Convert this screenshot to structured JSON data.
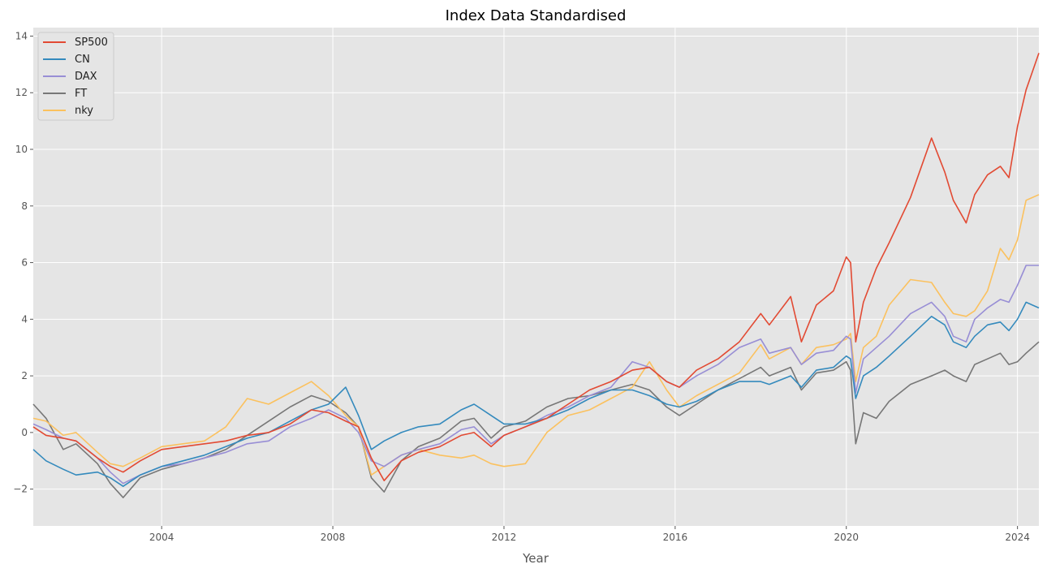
{
  "chart_data": {
    "type": "line",
    "title": "Index Data Standardised",
    "xlabel": "Year",
    "ylabel": "",
    "xlim": [
      2001.0,
      2024.5
    ],
    "ylim": [
      -3.3,
      14.3
    ],
    "x_ticks": [
      2004,
      2008,
      2012,
      2016,
      2020,
      2024
    ],
    "x_tick_labels": [
      "2004",
      "2008",
      "2012",
      "2016",
      "2020",
      "2024"
    ],
    "y_ticks": [
      -2,
      0,
      2,
      4,
      6,
      8,
      10,
      12,
      14
    ],
    "y_tick_labels": [
      "−2",
      "0",
      "2",
      "4",
      "6",
      "8",
      "10",
      "12",
      "14"
    ],
    "grid": true,
    "legend_position": "top-left",
    "series": [
      {
        "name": "SP500",
        "color": "#E24A33",
        "x": [
          2001.0,
          2001.3,
          2001.7,
          2002.0,
          2002.5,
          2002.8,
          2003.1,
          2003.5,
          2004.0,
          2004.5,
          2005.0,
          2005.5,
          2006.0,
          2006.5,
          2007.0,
          2007.5,
          2007.9,
          2008.3,
          2008.6,
          2008.9,
          2009.2,
          2009.6,
          2010.0,
          2010.5,
          2011.0,
          2011.3,
          2011.7,
          2012.0,
          2012.5,
          2013.0,
          2013.5,
          2014.0,
          2014.5,
          2015.0,
          2015.4,
          2015.8,
          2016.1,
          2016.5,
          2017.0,
          2017.5,
          2018.0,
          2018.2,
          2018.7,
          2018.95,
          2019.3,
          2019.7,
          2020.0,
          2020.1,
          2020.22,
          2020.4,
          2020.7,
          2021.0,
          2021.5,
          2021.99,
          2022.3,
          2022.5,
          2022.8,
          2023.0,
          2023.3,
          2023.6,
          2023.8,
          2024.0,
          2024.2,
          2024.5
        ],
        "y": [
          0.2,
          -0.1,
          -0.2,
          -0.3,
          -0.9,
          -1.2,
          -1.4,
          -1.0,
          -0.6,
          -0.5,
          -0.4,
          -0.3,
          -0.1,
          0.0,
          0.3,
          0.8,
          0.7,
          0.4,
          0.2,
          -0.9,
          -1.7,
          -1.0,
          -0.7,
          -0.5,
          -0.1,
          0.0,
          -0.5,
          -0.1,
          0.2,
          0.5,
          1.0,
          1.5,
          1.8,
          2.2,
          2.3,
          1.8,
          1.6,
          2.2,
          2.6,
          3.2,
          4.2,
          3.8,
          4.8,
          3.2,
          4.5,
          5.0,
          6.2,
          6.0,
          3.2,
          4.6,
          5.8,
          6.7,
          8.3,
          10.4,
          9.2,
          8.2,
          7.4,
          8.4,
          9.1,
          9.4,
          9.0,
          10.8,
          12.1,
          13.4
        ]
      },
      {
        "name": "CN",
        "color": "#348ABD",
        "x": [
          2001.0,
          2001.3,
          2001.7,
          2002.0,
          2002.5,
          2002.8,
          2003.1,
          2003.5,
          2004.0,
          2004.5,
          2005.0,
          2005.5,
          2006.0,
          2006.5,
          2007.0,
          2007.5,
          2007.9,
          2008.3,
          2008.6,
          2008.9,
          2009.2,
          2009.6,
          2010.0,
          2010.5,
          2011.0,
          2011.3,
          2011.7,
          2012.0,
          2012.5,
          2013.0,
          2013.5,
          2014.0,
          2014.5,
          2015.0,
          2015.4,
          2015.8,
          2016.1,
          2016.5,
          2017.0,
          2017.5,
          2018.0,
          2018.2,
          2018.7,
          2018.95,
          2019.3,
          2019.7,
          2020.0,
          2020.1,
          2020.22,
          2020.4,
          2020.7,
          2021.0,
          2021.5,
          2021.99,
          2022.3,
          2022.5,
          2022.8,
          2023.0,
          2023.3,
          2023.6,
          2023.8,
          2024.0,
          2024.2,
          2024.5
        ],
        "y": [
          -0.6,
          -1.0,
          -1.3,
          -1.5,
          -1.4,
          -1.6,
          -1.9,
          -1.5,
          -1.2,
          -1.0,
          -0.8,
          -0.5,
          -0.2,
          0.0,
          0.4,
          0.8,
          1.0,
          1.6,
          0.6,
          -0.6,
          -0.3,
          0.0,
          0.2,
          0.3,
          0.8,
          1.0,
          0.6,
          0.3,
          0.3,
          0.5,
          0.8,
          1.2,
          1.5,
          1.5,
          1.3,
          1.0,
          0.9,
          1.1,
          1.5,
          1.8,
          1.8,
          1.7,
          2.0,
          1.6,
          2.2,
          2.3,
          2.7,
          2.6,
          1.2,
          2.0,
          2.3,
          2.7,
          3.4,
          4.1,
          3.8,
          3.2,
          3.0,
          3.4,
          3.8,
          3.9,
          3.6,
          4.0,
          4.6,
          4.4
        ]
      },
      {
        "name": "DAX",
        "color": "#988ED5",
        "x": [
          2001.0,
          2001.3,
          2001.7,
          2002.0,
          2002.5,
          2002.8,
          2003.1,
          2003.5,
          2004.0,
          2004.5,
          2005.0,
          2005.5,
          2006.0,
          2006.5,
          2007.0,
          2007.5,
          2007.9,
          2008.3,
          2008.6,
          2008.9,
          2009.2,
          2009.6,
          2010.0,
          2010.5,
          2011.0,
          2011.3,
          2011.7,
          2012.0,
          2012.5,
          2013.0,
          2013.5,
          2014.0,
          2014.5,
          2015.0,
          2015.4,
          2015.8,
          2016.1,
          2016.5,
          2017.0,
          2017.5,
          2018.0,
          2018.2,
          2018.7,
          2018.95,
          2019.3,
          2019.7,
          2020.0,
          2020.1,
          2020.22,
          2020.4,
          2020.7,
          2021.0,
          2021.5,
          2021.99,
          2022.3,
          2022.5,
          2022.8,
          2023.0,
          2023.3,
          2023.6,
          2023.8,
          2024.0,
          2024.2,
          2024.5
        ],
        "y": [
          0.3,
          0.1,
          -0.2,
          -0.3,
          -0.9,
          -1.4,
          -1.8,
          -1.5,
          -1.2,
          -1.1,
          -0.9,
          -0.7,
          -0.4,
          -0.3,
          0.2,
          0.5,
          0.8,
          0.5,
          0.0,
          -1.0,
          -1.2,
          -0.8,
          -0.6,
          -0.4,
          0.1,
          0.2,
          -0.4,
          -0.1,
          0.2,
          0.6,
          0.9,
          1.3,
          1.6,
          2.5,
          2.3,
          1.8,
          1.6,
          2.0,
          2.4,
          3.0,
          3.3,
          2.8,
          3.0,
          2.4,
          2.8,
          2.9,
          3.4,
          3.3,
          1.4,
          2.6,
          3.0,
          3.4,
          4.2,
          4.6,
          4.1,
          3.4,
          3.2,
          4.0,
          4.4,
          4.7,
          4.6,
          5.2,
          5.9,
          5.9
        ]
      },
      {
        "name": "FT",
        "color": "#777777",
        "x": [
          2001.0,
          2001.3,
          2001.7,
          2002.0,
          2002.5,
          2002.8,
          2003.1,
          2003.5,
          2004.0,
          2004.5,
          2005.0,
          2005.5,
          2006.0,
          2006.5,
          2007.0,
          2007.5,
          2007.9,
          2008.3,
          2008.6,
          2008.9,
          2009.2,
          2009.6,
          2010.0,
          2010.5,
          2011.0,
          2011.3,
          2011.7,
          2012.0,
          2012.5,
          2013.0,
          2013.5,
          2014.0,
          2014.5,
          2015.0,
          2015.4,
          2015.8,
          2016.1,
          2016.5,
          2017.0,
          2017.5,
          2018.0,
          2018.2,
          2018.7,
          2018.95,
          2019.3,
          2019.7,
          2020.0,
          2020.1,
          2020.22,
          2020.4,
          2020.7,
          2021.0,
          2021.5,
          2021.99,
          2022.3,
          2022.5,
          2022.8,
          2023.0,
          2023.3,
          2023.6,
          2023.8,
          2024.0,
          2024.2,
          2024.5
        ],
        "y": [
          1.0,
          0.5,
          -0.6,
          -0.4,
          -1.1,
          -1.8,
          -2.3,
          -1.6,
          -1.3,
          -1.1,
          -0.9,
          -0.6,
          -0.1,
          0.4,
          0.9,
          1.3,
          1.1,
          0.7,
          0.2,
          -1.6,
          -2.1,
          -1.0,
          -0.5,
          -0.2,
          0.4,
          0.5,
          -0.2,
          0.2,
          0.4,
          0.9,
          1.2,
          1.3,
          1.5,
          1.7,
          1.5,
          0.9,
          0.6,
          1.0,
          1.5,
          1.9,
          2.3,
          2.0,
          2.3,
          1.5,
          2.1,
          2.2,
          2.5,
          2.2,
          -0.4,
          0.7,
          0.5,
          1.1,
          1.7,
          2.0,
          2.2,
          2.0,
          1.8,
          2.4,
          2.6,
          2.8,
          2.4,
          2.5,
          2.8,
          3.2
        ]
      },
      {
        "name": "nky",
        "color": "#FBC15E",
        "x": [
          2001.0,
          2001.3,
          2001.7,
          2002.0,
          2002.5,
          2002.8,
          2003.1,
          2003.5,
          2004.0,
          2004.5,
          2005.0,
          2005.5,
          2006.0,
          2006.5,
          2007.0,
          2007.5,
          2007.9,
          2008.3,
          2008.6,
          2008.9,
          2009.2,
          2009.6,
          2010.0,
          2010.5,
          2011.0,
          2011.3,
          2011.7,
          2012.0,
          2012.5,
          2013.0,
          2013.5,
          2014.0,
          2014.5,
          2015.0,
          2015.4,
          2015.8,
          2016.1,
          2016.5,
          2017.0,
          2017.5,
          2018.0,
          2018.2,
          2018.7,
          2018.95,
          2019.3,
          2019.7,
          2020.0,
          2020.1,
          2020.22,
          2020.4,
          2020.7,
          2021.0,
          2021.5,
          2021.99,
          2022.3,
          2022.5,
          2022.8,
          2023.0,
          2023.3,
          2023.6,
          2023.8,
          2024.0,
          2024.2,
          2024.5
        ],
        "y": [
          0.5,
          0.4,
          -0.1,
          0.0,
          -0.7,
          -1.1,
          -1.2,
          -0.9,
          -0.5,
          -0.4,
          -0.3,
          0.2,
          1.2,
          1.0,
          1.4,
          1.8,
          1.3,
          0.6,
          0.2,
          -1.5,
          -1.2,
          -0.8,
          -0.6,
          -0.8,
          -0.9,
          -0.8,
          -1.1,
          -1.2,
          -1.1,
          0.0,
          0.6,
          0.8,
          1.2,
          1.6,
          2.5,
          1.5,
          0.9,
          1.3,
          1.7,
          2.1,
          3.1,
          2.6,
          3.0,
          2.4,
          3.0,
          3.1,
          3.3,
          3.5,
          1.8,
          3.0,
          3.4,
          4.5,
          5.4,
          5.3,
          4.6,
          4.2,
          4.1,
          4.3,
          5.0,
          6.5,
          6.1,
          6.8,
          8.2,
          8.4
        ]
      }
    ]
  }
}
